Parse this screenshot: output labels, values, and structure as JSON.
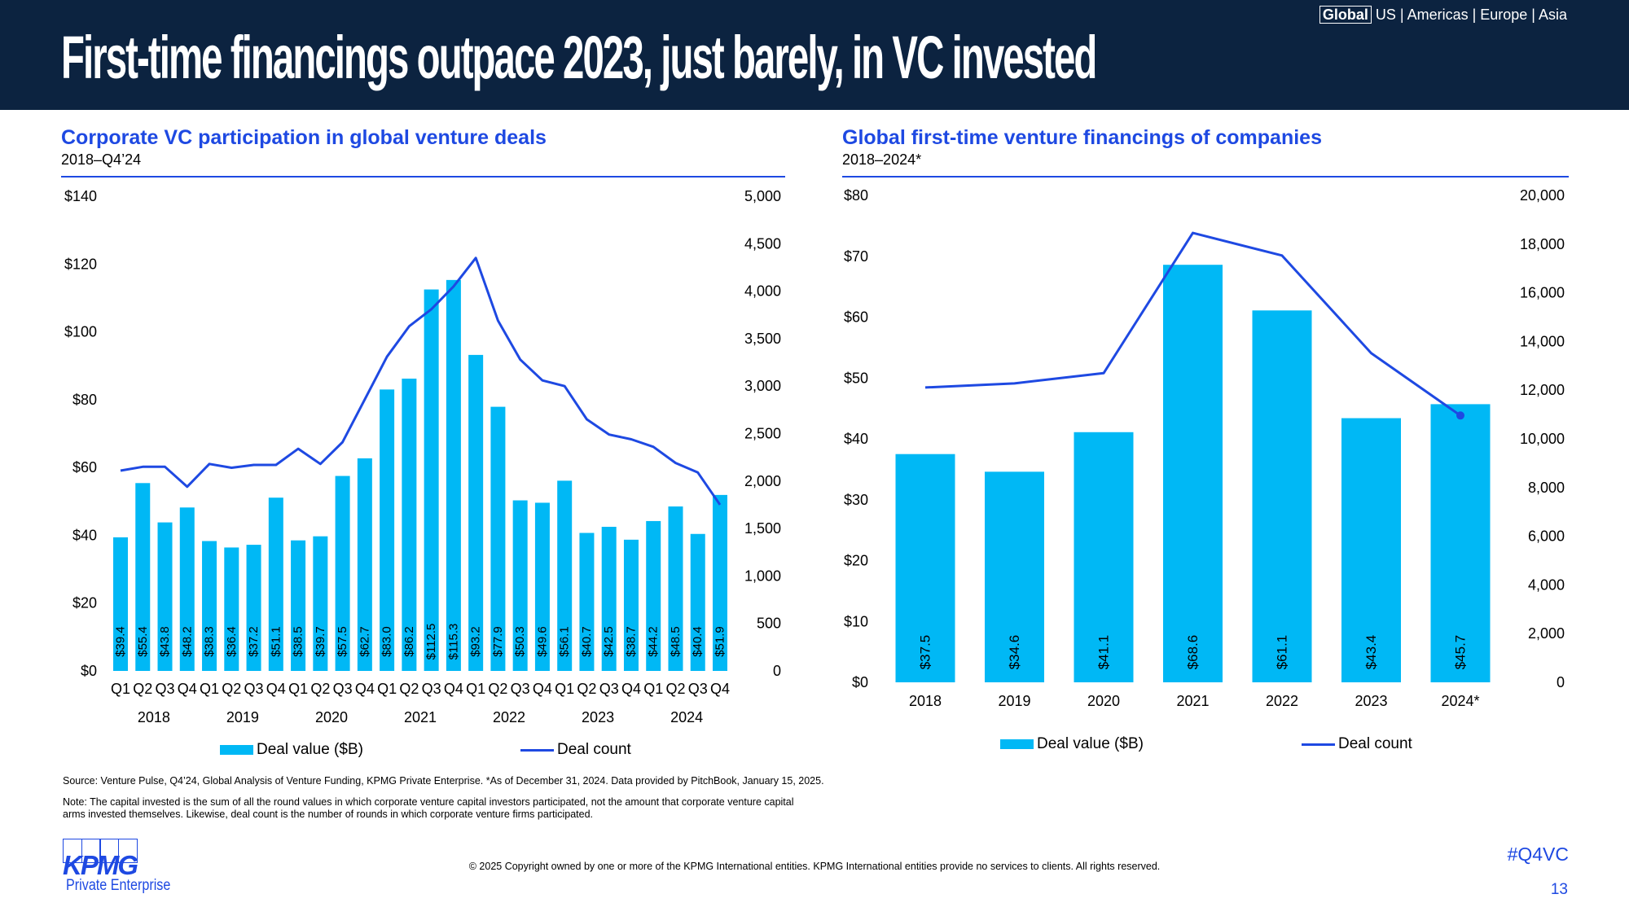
{
  "header": {
    "title": "First-time financings outpace 2023, just barely, in VC invested",
    "regions": {
      "active": "Global",
      "others": "US | Americas | Europe | Asia"
    }
  },
  "colors": {
    "bar": "#00b8f5",
    "line": "#1e49e2",
    "header_bg": "#0c2340",
    "accent": "#1e49e2"
  },
  "chart_data": [
    {
      "type": "bar+line",
      "title": "Corporate VC participation in global venture deals",
      "subtitle": "2018–Q4’24",
      "categories": [
        "Q1",
        "Q2",
        "Q3",
        "Q4",
        "Q1",
        "Q2",
        "Q3",
        "Q4",
        "Q1",
        "Q2",
        "Q3",
        "Q4",
        "Q1",
        "Q2",
        "Q3",
        "Q4",
        "Q1",
        "Q2",
        "Q3",
        "Q4",
        "Q1",
        "Q2",
        "Q3",
        "Q4",
        "Q1",
        "Q2",
        "Q3",
        "Q4"
      ],
      "year_groups": [
        "2018",
        "2019",
        "2020",
        "2021",
        "2022",
        "2023",
        "2024"
      ],
      "series": [
        {
          "name": "Deal value ($B)",
          "axis": "left",
          "type": "bar",
          "values": [
            39.4,
            55.4,
            43.8,
            48.2,
            38.3,
            36.4,
            37.2,
            51.1,
            38.5,
            39.7,
            57.5,
            62.7,
            83.0,
            86.2,
            112.5,
            115.3,
            93.2,
            77.9,
            50.3,
            49.6,
            56.1,
            40.7,
            42.5,
            38.7,
            44.2,
            48.5,
            40.4,
            51.9
          ],
          "labels": [
            "$39.4",
            "$55.4",
            "$43.8",
            "$48.2",
            "$38.3",
            "$36.4",
            "$37.2",
            "$51.1",
            "$38.5",
            "$39.7",
            "$57.5",
            "$62.7",
            "$83.0",
            "$86.2",
            "$112.5",
            "$115.3",
            "$93.2",
            "$77.9",
            "$50.3",
            "$49.6",
            "$56.1",
            "$40.7",
            "$42.5",
            "$38.7",
            "$44.2",
            "$48.5",
            "$40.4",
            "$51.9"
          ]
        },
        {
          "name": "Deal count",
          "axis": "right",
          "type": "line",
          "values": [
            2110,
            2150,
            2150,
            1940,
            2180,
            2140,
            2170,
            2170,
            2340,
            2180,
            2410,
            2860,
            3310,
            3630,
            3810,
            4050,
            4350,
            3690,
            3280,
            3060,
            3000,
            2650,
            2490,
            2440,
            2360,
            2190,
            2090,
            1750
          ]
        }
      ],
      "y_left": {
        "min": 0,
        "max": 140,
        "step": 20,
        "ticks": [
          "$0",
          "$20",
          "$40",
          "$60",
          "$80",
          "$100",
          "$120",
          "$140"
        ]
      },
      "y_right": {
        "min": 0,
        "max": 5000,
        "step": 500,
        "ticks": [
          "0",
          "500",
          "1,000",
          "1,500",
          "2,000",
          "2,500",
          "3,000",
          "3,500",
          "4,000",
          "4,500",
          "5,000"
        ]
      },
      "legend": [
        "Deal value ($B)",
        "Deal count"
      ],
      "legend_position": "bottom",
      "grid": false
    },
    {
      "type": "bar+line",
      "title": "Global first-time venture financings of companies",
      "subtitle": "2018–2024*",
      "categories": [
        "2018",
        "2019",
        "2020",
        "2021",
        "2022",
        "2023",
        "2024*"
      ],
      "series": [
        {
          "name": "Deal value ($B)",
          "axis": "left",
          "type": "bar",
          "values": [
            37.5,
            34.6,
            41.1,
            68.6,
            61.1,
            43.4,
            45.7
          ],
          "labels": [
            "$37.5",
            "$34.6",
            "$41.1",
            "$68.6",
            "$61.1",
            "$43.4",
            "$45.7"
          ]
        },
        {
          "name": "Deal count",
          "axis": "right",
          "type": "line",
          "values": [
            12110,
            12280,
            12700,
            18460,
            17530,
            13520,
            10960
          ]
        }
      ],
      "y_left": {
        "min": 0,
        "max": 80,
        "step": 10,
        "ticks": [
          "$0",
          "$10",
          "$20",
          "$30",
          "$40",
          "$50",
          "$60",
          "$70",
          "$80"
        ]
      },
      "y_right": {
        "min": 0,
        "max": 20000,
        "step": 2000,
        "ticks": [
          "0",
          "2,000",
          "4,000",
          "6,000",
          "8,000",
          "10,000",
          "12,000",
          "14,000",
          "16,000",
          "18,000",
          "20,000"
        ]
      },
      "legend": [
        "Deal value ($B)",
        "Deal count"
      ],
      "legend_position": "bottom",
      "grid": false
    }
  ],
  "footer": {
    "source": "Source: Venture Pulse, Q4’24, Global Analysis of Venture Funding, KPMG Private Enterprise. *As of December 31, 2024. Data provided by PitchBook, January 15, 2025.",
    "note_line1": "Note: The capital invested is the sum of all the round values in which corporate venture capital investors participated, not the amount that corporate venture capital",
    "note_line2": "arms invested themselves. Likewise, deal count is the number of rounds in which corporate venture firms participated.",
    "copyright": "© 2025 Copyright owned by one or more of the KPMG International entities. KPMG International entities provide no services to clients. All rights reserved.",
    "logo_text": "KPMG",
    "logo_sub": "Private Enterprise",
    "hashtag": "#Q4VC",
    "page_number": "13"
  }
}
